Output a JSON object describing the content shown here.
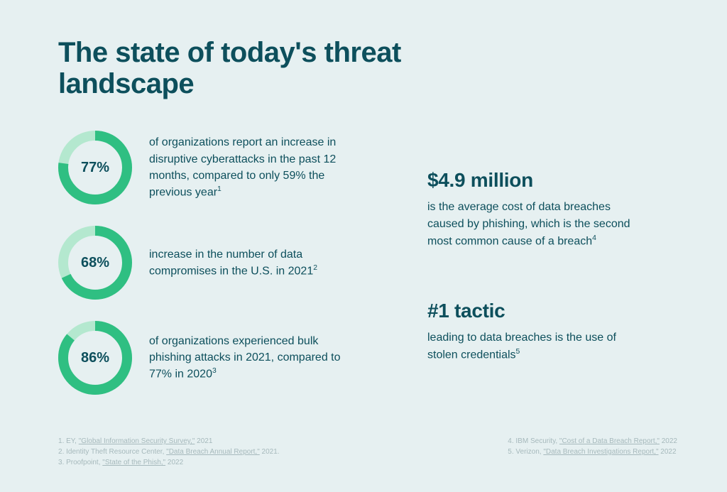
{
  "background_color": "#e6f0f1",
  "text_color": "#0d4f5c",
  "footnote_color": "#a6b9bc",
  "title": "The state of today's threat landscape",
  "title_fontsize": 40,
  "donut": {
    "size": 104,
    "thickness": 14,
    "track_color": "#b4e8cf",
    "fill_color": "#2fbf82",
    "label_fontsize": 20
  },
  "stats": [
    {
      "percent": 77,
      "label": "77%",
      "text": "of organizations report an increase in disruptive cyberattacks in the past 12 months, compared to only 59% the previous year",
      "sup": "1"
    },
    {
      "percent": 68,
      "label": "68%",
      "text": "increase in the number of data compromises in the U.S. in 2021",
      "sup": "2"
    },
    {
      "percent": 86,
      "label": "86%",
      "text": "of organizations experienced bulk phishing attacks in 2021, compared to 77% in 2020",
      "sup": "3"
    }
  ],
  "right_stats": [
    {
      "headline": "$4.9 million",
      "body": "is the average cost of data breaches caused by phishing, which is the second most common cause of a breach",
      "sup": "4"
    },
    {
      "headline": "#1 tactic",
      "body": "leading to data breaches is the use of stolen credentials",
      "sup": "5"
    }
  ],
  "right_headline_fontsize": 28,
  "body_fontsize": 16,
  "footnotes_left": [
    {
      "n": "1",
      "prefix": "EY, ",
      "title": "\"Global Information Security Survey,\"",
      "suffix": " 2021"
    },
    {
      "n": "2",
      "prefix": "Identity Theft Resource Center, ",
      "title": "\"Data Breach Annual Report,\"",
      "suffix": " 2021."
    },
    {
      "n": "3",
      "prefix": "Proofpoint, ",
      "title": "\"State of the Phish,\"",
      "suffix": " 2022"
    }
  ],
  "footnotes_right": [
    {
      "n": "4",
      "prefix": "IBM Security, ",
      "title": "\"Cost of a Data Breach Report,\"",
      "suffix": " 2022"
    },
    {
      "n": "5",
      "prefix": "Verizon, ",
      "title": "\"Data Breach Investigations Report,\"",
      "suffix": " 2022"
    }
  ]
}
